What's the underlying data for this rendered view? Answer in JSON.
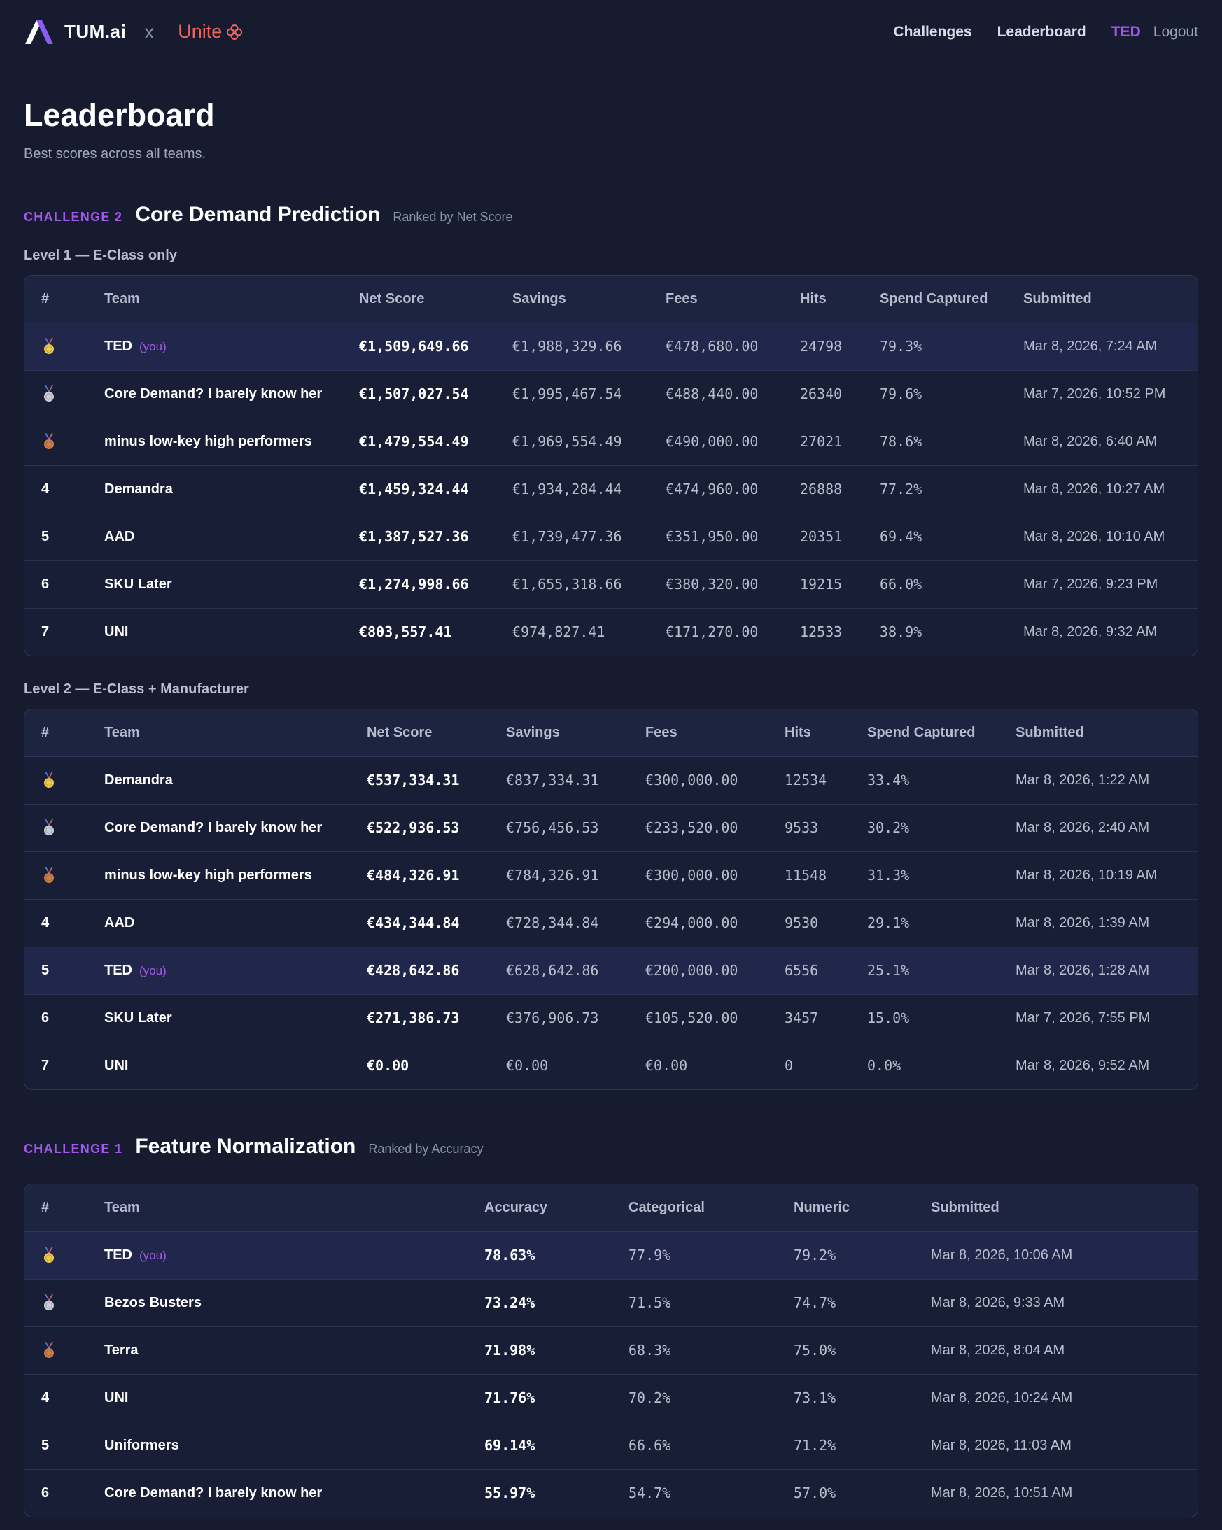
{
  "nav": {
    "brand": "TUM.ai",
    "separator": "x",
    "partner": "Unite",
    "links": [
      "Challenges",
      "Leaderboard"
    ],
    "user": "TED",
    "logout": "Logout"
  },
  "page": {
    "title": "Leaderboard",
    "subtitle": "Best scores across all teams."
  },
  "you_label": "(you)",
  "medal_colors": {
    "gold": "#f2c94c",
    "silver": "#c9ccd4",
    "bronze": "#cd7f4a"
  },
  "challenge2": {
    "tag": "CHALLENGE 2",
    "title": "Core Demand Prediction",
    "ranked_by": "Ranked by Net Score",
    "columns": [
      "#",
      "Team",
      "Net Score",
      "Savings",
      "Fees",
      "Hits",
      "Spend Captured",
      "Submitted"
    ],
    "level1": {
      "label": "Level 1 — E-Class only",
      "rows": [
        {
          "rank": "1",
          "team": "TED",
          "you": true,
          "net": "€1,509,649.66",
          "savings": "€1,988,329.66",
          "fees": "€478,680.00",
          "hits": "24798",
          "spend": "79.3%",
          "submitted": "Mar 8, 2026, 7:24 AM"
        },
        {
          "rank": "2",
          "team": "Core Demand? I barely know her",
          "you": false,
          "net": "€1,507,027.54",
          "savings": "€1,995,467.54",
          "fees": "€488,440.00",
          "hits": "26340",
          "spend": "79.6%",
          "submitted": "Mar 7, 2026, 10:52 PM"
        },
        {
          "rank": "3",
          "team": "minus low-key high performers",
          "you": false,
          "net": "€1,479,554.49",
          "savings": "€1,969,554.49",
          "fees": "€490,000.00",
          "hits": "27021",
          "spend": "78.6%",
          "submitted": "Mar 8, 2026, 6:40 AM"
        },
        {
          "rank": "4",
          "team": "Demandra",
          "you": false,
          "net": "€1,459,324.44",
          "savings": "€1,934,284.44",
          "fees": "€474,960.00",
          "hits": "26888",
          "spend": "77.2%",
          "submitted": "Mar 8, 2026, 10:27 AM"
        },
        {
          "rank": "5",
          "team": "AAD",
          "you": false,
          "net": "€1,387,527.36",
          "savings": "€1,739,477.36",
          "fees": "€351,950.00",
          "hits": "20351",
          "spend": "69.4%",
          "submitted": "Mar 8, 2026, 10:10 AM"
        },
        {
          "rank": "6",
          "team": "SKU Later",
          "you": false,
          "net": "€1,274,998.66",
          "savings": "€1,655,318.66",
          "fees": "€380,320.00",
          "hits": "19215",
          "spend": "66.0%",
          "submitted": "Mar 7, 2026, 9:23 PM"
        },
        {
          "rank": "7",
          "team": "UNI",
          "you": false,
          "net": "€803,557.41",
          "savings": "€974,827.41",
          "fees": "€171,270.00",
          "hits": "12533",
          "spend": "38.9%",
          "submitted": "Mar 8, 2026, 9:32 AM"
        }
      ]
    },
    "level2": {
      "label": "Level 2 — E-Class + Manufacturer",
      "rows": [
        {
          "rank": "1",
          "team": "Demandra",
          "you": false,
          "net": "€537,334.31",
          "savings": "€837,334.31",
          "fees": "€300,000.00",
          "hits": "12534",
          "spend": "33.4%",
          "submitted": "Mar 8, 2026, 1:22 AM"
        },
        {
          "rank": "2",
          "team": "Core Demand? I barely know her",
          "you": false,
          "net": "€522,936.53",
          "savings": "€756,456.53",
          "fees": "€233,520.00",
          "hits": "9533",
          "spend": "30.2%",
          "submitted": "Mar 8, 2026, 2:40 AM"
        },
        {
          "rank": "3",
          "team": "minus low-key high performers",
          "you": false,
          "net": "€484,326.91",
          "savings": "€784,326.91",
          "fees": "€300,000.00",
          "hits": "11548",
          "spend": "31.3%",
          "submitted": "Mar 8, 2026, 10:19 AM"
        },
        {
          "rank": "4",
          "team": "AAD",
          "you": false,
          "net": "€434,344.84",
          "savings": "€728,344.84",
          "fees": "€294,000.00",
          "hits": "9530",
          "spend": "29.1%",
          "submitted": "Mar 8, 2026, 1:39 AM"
        },
        {
          "rank": "5",
          "team": "TED",
          "you": true,
          "net": "€428,642.86",
          "savings": "€628,642.86",
          "fees": "€200,000.00",
          "hits": "6556",
          "spend": "25.1%",
          "submitted": "Mar 8, 2026, 1:28 AM"
        },
        {
          "rank": "6",
          "team": "SKU Later",
          "you": false,
          "net": "€271,386.73",
          "savings": "€376,906.73",
          "fees": "€105,520.00",
          "hits": "3457",
          "spend": "15.0%",
          "submitted": "Mar 7, 2026, 7:55 PM"
        },
        {
          "rank": "7",
          "team": "UNI",
          "you": false,
          "net": "€0.00",
          "savings": "€0.00",
          "fees": "€0.00",
          "hits": "0",
          "spend": "0.0%",
          "submitted": "Mar 8, 2026, 9:52 AM"
        }
      ]
    }
  },
  "challenge1": {
    "tag": "CHALLENGE 1",
    "title": "Feature Normalization",
    "ranked_by": "Ranked by Accuracy",
    "columns": [
      "#",
      "Team",
      "Accuracy",
      "Categorical",
      "Numeric",
      "Submitted"
    ],
    "rows": [
      {
        "rank": "1",
        "team": "TED",
        "you": true,
        "accuracy": "78.63%",
        "categorical": "77.9%",
        "numeric": "79.2%",
        "submitted": "Mar 8, 2026, 10:06 AM"
      },
      {
        "rank": "2",
        "team": "Bezos Busters",
        "you": false,
        "accuracy": "73.24%",
        "categorical": "71.5%",
        "numeric": "74.7%",
        "submitted": "Mar 8, 2026, 9:33 AM"
      },
      {
        "rank": "3",
        "team": "Terra",
        "you": false,
        "accuracy": "71.98%",
        "categorical": "68.3%",
        "numeric": "75.0%",
        "submitted": "Mar 8, 2026, 8:04 AM"
      },
      {
        "rank": "4",
        "team": "UNI",
        "you": false,
        "accuracy": "71.76%",
        "categorical": "70.2%",
        "numeric": "73.1%",
        "submitted": "Mar 8, 2026, 10:24 AM"
      },
      {
        "rank": "5",
        "team": "Uniformers",
        "you": false,
        "accuracy": "69.14%",
        "categorical": "66.6%",
        "numeric": "71.2%",
        "submitted": "Mar 8, 2026, 11:03 AM"
      },
      {
        "rank": "6",
        "team": "Core Demand? I barely know her",
        "you": false,
        "accuracy": "55.97%",
        "categorical": "54.7%",
        "numeric": "57.0%",
        "submitted": "Mar 8, 2026, 10:51 AM"
      }
    ]
  }
}
